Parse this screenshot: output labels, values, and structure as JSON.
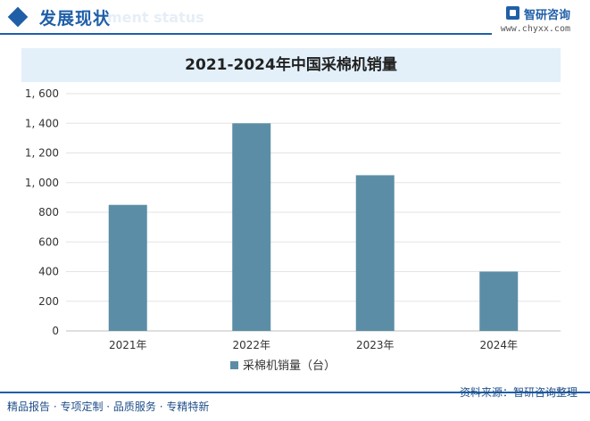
{
  "header": {
    "title": "发展现状",
    "ghost_text": "ment status"
  },
  "brand": {
    "name": "智研咨询",
    "url": "www.chyxx.com"
  },
  "footer": {
    "left": "精品报告 · 专项定制 · 品质服务 · 专精特新",
    "right": "资料来源：智研咨询整理"
  },
  "colors": {
    "accent": "#1f5fa8",
    "bar": "#5b8ea6",
    "title_band": "#e3f0fa"
  },
  "chart_data": {
    "type": "bar",
    "title": "2021-2024年中国采棉机销量",
    "categories": [
      "2021年",
      "2022年",
      "2023年",
      "2024年"
    ],
    "series": [
      {
        "name": "采棉机销量（台）",
        "values": [
          850,
          1400,
          1050,
          400
        ]
      }
    ],
    "ylim": [
      0,
      1600
    ],
    "yticks": [
      "0",
      "200",
      "400",
      "600",
      "800",
      "1, 000",
      "1, 200",
      "1, 400",
      "1, 600"
    ],
    "grid": true,
    "legend": "bottom"
  }
}
